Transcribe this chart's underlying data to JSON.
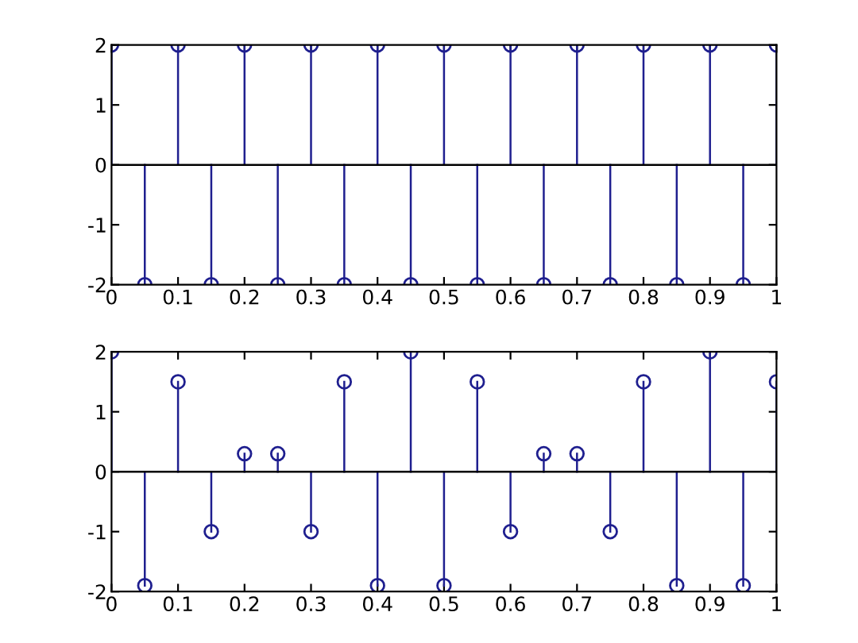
{
  "chart_data": [
    {
      "type": "lollipop",
      "x": [
        0,
        0.05,
        0.1,
        0.15,
        0.2,
        0.25,
        0.3,
        0.35,
        0.4,
        0.45,
        0.5,
        0.55,
        0.6,
        0.65,
        0.7,
        0.75,
        0.8,
        0.85,
        0.9,
        0.95,
        1
      ],
      "series": [
        {
          "color": "#1f1f8f",
          "values": [
            2,
            -2,
            2,
            -2,
            2,
            -2,
            2,
            -2,
            2,
            -2,
            2,
            -2,
            2,
            -2,
            2,
            -2,
            2,
            -2,
            2,
            -2,
            2
          ]
        }
      ],
      "xlim": [
        0,
        1
      ],
      "xticks": [
        0,
        0.1,
        0.2,
        0.3,
        0.4,
        0.5,
        0.6,
        0.7,
        0.8,
        0.9,
        1
      ],
      "ylim": [
        -2,
        2
      ],
      "yticks": [
        -2,
        -1,
        0,
        1,
        2
      ],
      "marker": "circle",
      "ref_lines": [
        {
          "axis": "y",
          "value": 0,
          "color": "#000000"
        }
      ]
    },
    {
      "type": "lollipop",
      "x": [
        0,
        0.05,
        0.1,
        0.15,
        0.2,
        0.25,
        0.3,
        0.35,
        0.4,
        0.45,
        0.5,
        0.55,
        0.6,
        0.65,
        0.7,
        0.75,
        0.8,
        0.85,
        0.9,
        0.95,
        1
      ],
      "series": [
        {
          "color": "#1f1f8f",
          "values": [
            2,
            -1.9,
            1.5,
            -1,
            0.3,
            0.3,
            -1,
            1.5,
            -1.9,
            2,
            -1.9,
            1.5,
            -1,
            0.3,
            0.3,
            -1,
            1.5,
            -1.9,
            2,
            -1.9,
            1.5
          ]
        }
      ],
      "xlim": [
        0,
        1
      ],
      "xticks": [
        0,
        0.1,
        0.2,
        0.3,
        0.4,
        0.5,
        0.6,
        0.7,
        0.8,
        0.9,
        1
      ],
      "ylim": [
        -2,
        2
      ],
      "yticks": [
        -2,
        -1,
        0,
        1,
        2
      ],
      "marker": "circle",
      "ref_lines": [
        {
          "axis": "y",
          "value": 0,
          "color": "#000000"
        }
      ]
    }
  ]
}
